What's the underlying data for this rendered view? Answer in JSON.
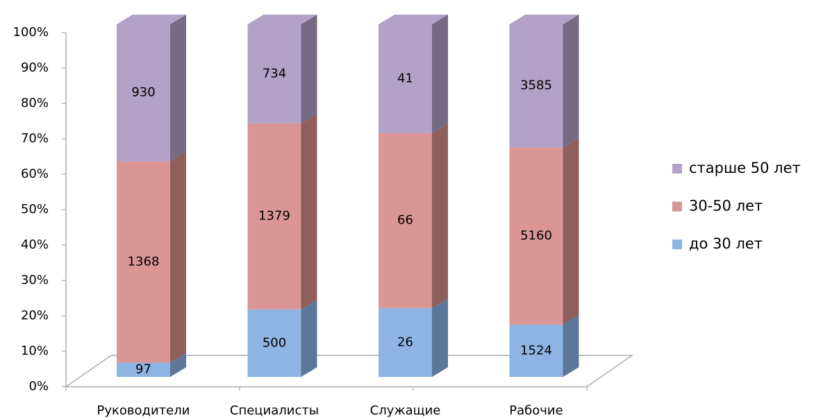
{
  "chart_data": {
    "type": "bar",
    "stacking": "percent",
    "categories": [
      "Руководители",
      "Специалисты",
      "Служащие",
      "Рабочие"
    ],
    "series": [
      {
        "name": "до 30 лет",
        "color": "#8eb4e3",
        "side": "#5c7799",
        "values": [
          97,
          500,
          26,
          1524
        ]
      },
      {
        "name": "30-50 лет",
        "color": "#d99694",
        "side": "#8f5f5c",
        "values": [
          1368,
          1379,
          66,
          5160
        ]
      },
      {
        "name": "старше 50 лет",
        "color": "#b3a2c7",
        "side": "#766a85",
        "values": [
          930,
          734,
          41,
          3585
        ]
      }
    ],
    "ylim": [
      0,
      100
    ],
    "yticks": [
      {
        "value": 0,
        "label": "0%"
      },
      {
        "value": 10,
        "label": "10%"
      },
      {
        "value": 20,
        "label": "20%"
      },
      {
        "value": 30,
        "label": "30%"
      },
      {
        "value": 40,
        "label": "40%"
      },
      {
        "value": 50,
        "label": "50%"
      },
      {
        "value": 60,
        "label": "60%"
      },
      {
        "value": 70,
        "label": "70%"
      },
      {
        "value": 80,
        "label": "80%"
      },
      {
        "value": 90,
        "label": "90%"
      },
      {
        "value": 100,
        "label": "100%"
      }
    ],
    "legend": "right"
  }
}
